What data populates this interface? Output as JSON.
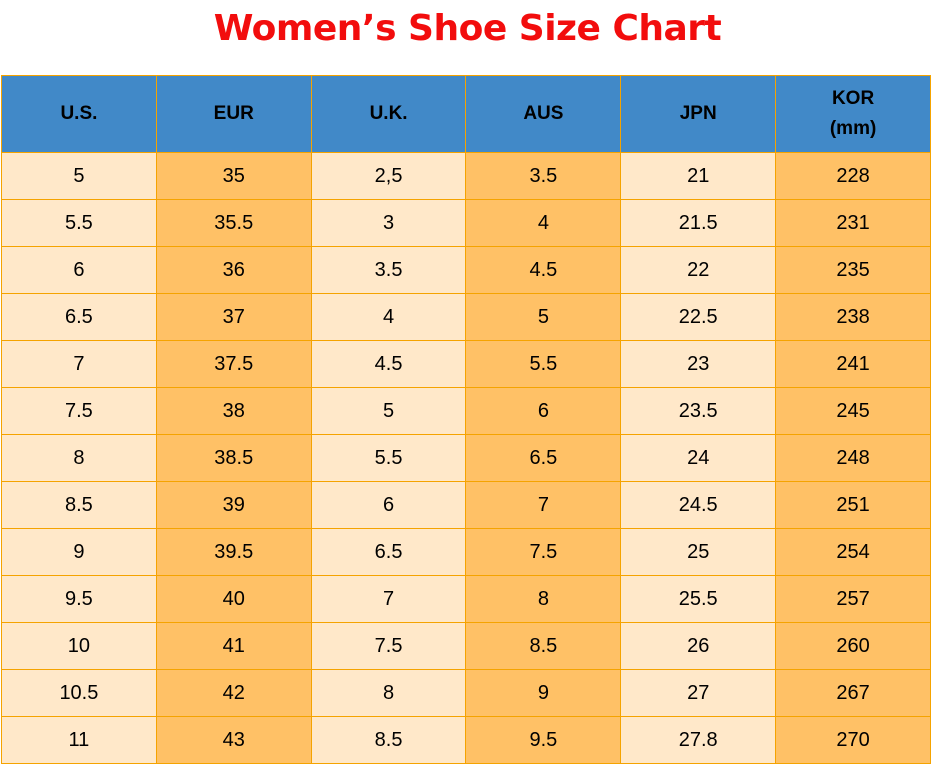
{
  "title": "Women’s Shoe Size Chart",
  "colors": {
    "title": "#f20d0d",
    "header_bg": "#4189c8",
    "cell_light": "#ffe8c9",
    "cell_dark": "#ffc166",
    "border": "#f5a300"
  },
  "table": {
    "headers": [
      [
        "U.S."
      ],
      [
        "EUR"
      ],
      [
        "U.K."
      ],
      [
        "AUS"
      ],
      [
        "JPN"
      ],
      [
        "KOR",
        "(mm)"
      ]
    ],
    "rows": [
      [
        "5",
        "35",
        "2,5",
        "3.5",
        "21",
        "228"
      ],
      [
        "5.5",
        "35.5",
        "3",
        "4",
        "21.5",
        "231"
      ],
      [
        "6",
        "36",
        "3.5",
        "4.5",
        "22",
        "235"
      ],
      [
        "6.5",
        "37",
        "4",
        "5",
        "22.5",
        "238"
      ],
      [
        "7",
        "37.5",
        "4.5",
        "5.5",
        "23",
        "241"
      ],
      [
        "7.5",
        "38",
        "5",
        "6",
        "23.5",
        "245"
      ],
      [
        "8",
        "38.5",
        "5.5",
        "6.5",
        "24",
        "248"
      ],
      [
        "8.5",
        "39",
        "6",
        "7",
        "24.5",
        "251"
      ],
      [
        "9",
        "39.5",
        "6.5",
        "7.5",
        "25",
        "254"
      ],
      [
        "9.5",
        "40",
        "7",
        "8",
        "25.5",
        "257"
      ],
      [
        "10",
        "41",
        "7.5",
        "8.5",
        "26",
        "260"
      ],
      [
        "10.5",
        "42",
        "8",
        "9",
        "27",
        "267"
      ],
      [
        "11",
        "43",
        "8.5",
        "9.5",
        "27.8",
        "270"
      ]
    ]
  }
}
